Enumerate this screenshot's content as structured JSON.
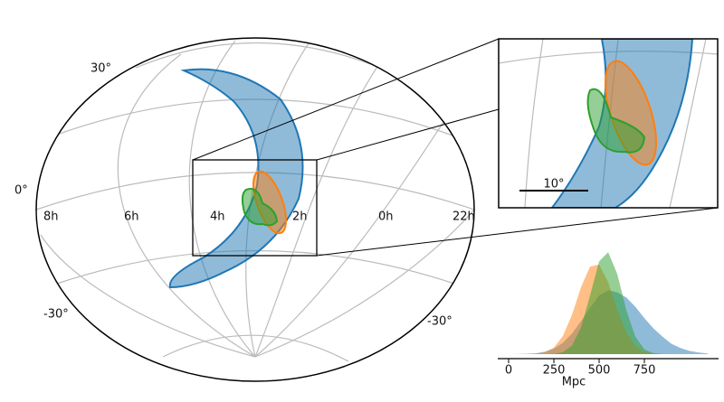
{
  "chart_data": [
    {
      "type": "skymap",
      "dec_labels": [
        "30°",
        "0°",
        "-30°",
        "-30°"
      ],
      "ra_labels": [
        "8h",
        "6h",
        "4h",
        "2h",
        "0h",
        "22h"
      ],
      "scale_label": "10°"
    },
    {
      "type": "area",
      "xlabel": "Mpc",
      "xlim": [
        -60,
        1160
      ],
      "xticks": [
        0,
        250,
        500,
        750
      ],
      "ylim": [
        0,
        1
      ],
      "x": [
        0,
        50,
        100,
        150,
        200,
        250,
        300,
        350,
        400,
        450,
        500,
        550,
        600,
        650,
        700,
        750,
        800,
        850,
        900,
        950,
        1000,
        1050,
        1100
      ],
      "series": [
        {
          "color": "#1f77b4",
          "values": [
            0,
            0.001,
            0.003,
            0.008,
            0.023,
            0.054,
            0.11,
            0.2,
            0.32,
            0.45,
            0.57,
            0.62,
            0.6,
            0.55,
            0.46,
            0.35,
            0.25,
            0.17,
            0.1,
            0.059,
            0.031,
            0.015,
            0.007
          ]
        },
        {
          "color": "#ff7f0e",
          "values": [
            0,
            0,
            0.001,
            0.004,
            0.018,
            0.063,
            0.176,
            0.38,
            0.65,
            0.85,
            0.87,
            0.7,
            0.43,
            0.21,
            0.08,
            0.02,
            0.01,
            0,
            0,
            0,
            0,
            0,
            0
          ]
        },
        {
          "color": "#2ca02c",
          "values": [
            0,
            0,
            0,
            0,
            0,
            0.003,
            0.019,
            0.082,
            0.257,
            0.57,
            0.9,
            0.99,
            0.78,
            0.43,
            0.17,
            0.047,
            0.009,
            0.001,
            0,
            0,
            0,
            0,
            0
          ]
        }
      ]
    }
  ]
}
